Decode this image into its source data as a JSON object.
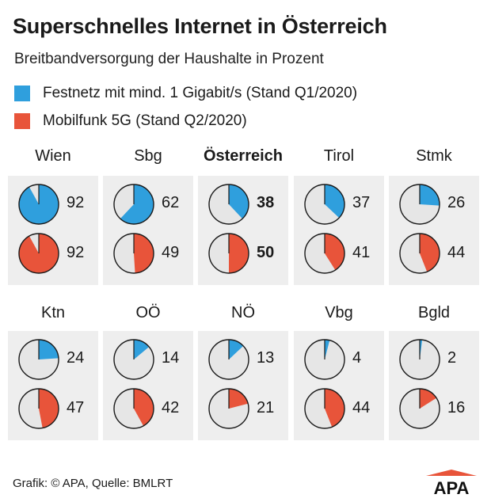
{
  "title": "Superschnelles Internet in Österreich",
  "subtitle": "Breitbandversorgung der Haushalte in Prozent",
  "legend": {
    "festnetz": "Festnetz mit mind. 1 Gigabit/s (Stand Q1/2020)",
    "mobilfunk": "Mobilfunk 5G (Stand Q2/2020)"
  },
  "colors": {
    "festnetz": "#2f9fdd",
    "mobilfunk": "#e8543a",
    "pie_background": "#e6e6e6",
    "panel": "#eeeeee"
  },
  "source": "Grafik: © APA, Quelle: BMLRT",
  "logo_text": "APA",
  "chart_data": {
    "type": "pie",
    "title": "Superschnelles Internet in Österreich",
    "subtitle": "Breitbandversorgung der Haushalte in Prozent",
    "unit": "%",
    "series": [
      {
        "name": "Festnetz mit mind. 1 Gigabit/s (Stand Q1/2020)",
        "key": "festnetz"
      },
      {
        "name": "Mobilfunk 5G (Stand Q2/2020)",
        "key": "mobilfunk"
      }
    ],
    "regions": [
      {
        "id": "wien",
        "label": "Wien",
        "festnetz": 92,
        "mobilfunk": 92,
        "highlight": false
      },
      {
        "id": "sbg",
        "label": "Sbg",
        "festnetz": 62,
        "mobilfunk": 49,
        "highlight": false
      },
      {
        "id": "oesterreich",
        "label": "Österreich",
        "festnetz": 38,
        "mobilfunk": 50,
        "highlight": true
      },
      {
        "id": "tirol",
        "label": "Tirol",
        "festnetz": 37,
        "mobilfunk": 41,
        "highlight": false
      },
      {
        "id": "stmk",
        "label": "Stmk",
        "festnetz": 26,
        "mobilfunk": 44,
        "highlight": false
      },
      {
        "id": "ktn",
        "label": "Ktn",
        "festnetz": 24,
        "mobilfunk": 47,
        "highlight": false
      },
      {
        "id": "ooe",
        "label": "OÖ",
        "festnetz": 14,
        "mobilfunk": 42,
        "highlight": false
      },
      {
        "id": "noe",
        "label": "NÖ",
        "festnetz": 13,
        "mobilfunk": 21,
        "highlight": false
      },
      {
        "id": "vbg",
        "label": "Vbg",
        "festnetz": 4,
        "mobilfunk": 44,
        "highlight": false
      },
      {
        "id": "bgld",
        "label": "Bgld",
        "festnetz": 2,
        "mobilfunk": 16,
        "highlight": false
      }
    ]
  }
}
